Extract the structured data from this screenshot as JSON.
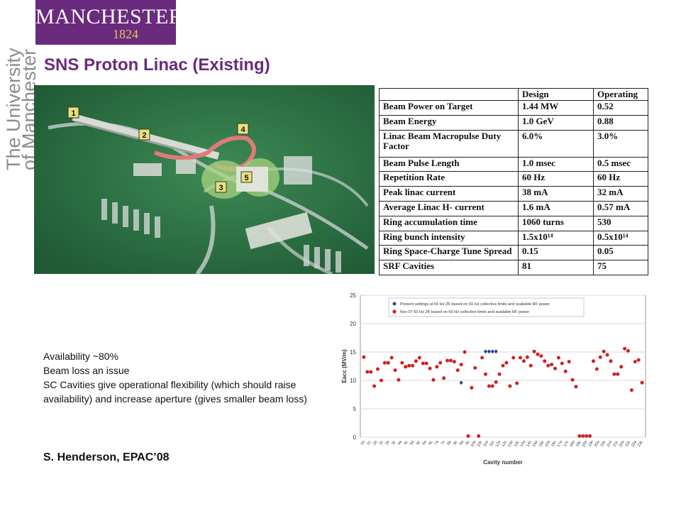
{
  "header": {
    "logo_name": "MANCHESTER",
    "logo_year": "1824",
    "vertical_line1": "The University",
    "vertical_line2": "of Manchester",
    "title": "SNS Proton Linac (Existing)",
    "brand_color": "#6a2a7e"
  },
  "photo": {
    "markers": [
      "1",
      "2",
      "3",
      "4",
      "5"
    ]
  },
  "table": {
    "headers": [
      "",
      "Design",
      "Operating"
    ],
    "rows": [
      [
        "Beam Power on Target",
        "1.44 MW",
        "0.52"
      ],
      [
        "Beam Energy",
        "1.0 GeV",
        "0.88"
      ],
      [
        "Linac Beam Macropulse Duty Factor",
        "6.0%",
        "3.0%"
      ],
      [
        "Beam Pulse Length",
        "1.0 msec",
        "0.5 msec"
      ],
      [
        "Repetition Rate",
        "60 Hz",
        "60 Hz"
      ],
      [
        "Peak linac current",
        "38 mA",
        "32 mA"
      ],
      [
        "Average Linac H- current",
        "1.6 mA",
        "0.57 mA"
      ],
      [
        "Ring accumulation time",
        "1060 turns",
        "530"
      ],
      [
        "Ring bunch intensity",
        "1.5x10¹⁴",
        "0.5x10¹⁴"
      ],
      [
        "Ring Space-Charge Tune Spread",
        "0.15",
        "0.05"
      ],
      [
        "SRF Cavities",
        "81",
        "75"
      ]
    ]
  },
  "notes": {
    "line1": "Availability ~80%",
    "line2": "Beam loss an issue",
    "line3": "SC Cavities give operational flexibility (which should raise availability) and increase aperture (gives smaller beam loss)",
    "citation": "S. Henderson, EPAC’08"
  },
  "chart_data": {
    "type": "scatter",
    "xlabel": "Cavity number",
    "ylabel": "Eacc (MV/m)",
    "ylim": [
      0,
      25
    ],
    "yticks": [
      0,
      5,
      10,
      15,
      20,
      25
    ],
    "xlim": [
      0,
      81
    ],
    "x_ticklabels": [
      "1a",
      "1c",
      "2a",
      "2c",
      "3a",
      "3c",
      "4a",
      "4c",
      "5a",
      "5c",
      "6a",
      "6c",
      "7a",
      "7c",
      "8a",
      "8c",
      "9a",
      "9c",
      "10a",
      "10c",
      "11a",
      "11c",
      "12a",
      "12c",
      "13a",
      "13c",
      "14a",
      "14c",
      "15a",
      "15c",
      "16a",
      "16c",
      "17a",
      "17c",
      "18a",
      "18c",
      "19a",
      "19c",
      "20a",
      "20c",
      "21a",
      "21c",
      "22a",
      "22c",
      "23a",
      "23c"
    ],
    "grid": true,
    "legend_position": "top",
    "series": [
      {
        "name": "Present settings at 60 Hz 2K based on 60 Hz collective limits and available RF power",
        "color": "#1f3f8f",
        "marker": "diamond",
        "x": [
          29,
          36,
          37,
          38,
          39
        ],
        "y": [
          9.6,
          15.1,
          15.1,
          15.1,
          15.1
        ]
      },
      {
        "name": "Nov 07 60 Hz 2K based on 60 Hz collective limits and available RF power",
        "color": "#d02020",
        "marker": "circle",
        "x": [
          1,
          2,
          3,
          4,
          5,
          6,
          7,
          8,
          9,
          10,
          11,
          12,
          13,
          14,
          15,
          16,
          17,
          18,
          19,
          20,
          21,
          22,
          23,
          24,
          25,
          26,
          27,
          28,
          29,
          30,
          31,
          32,
          33,
          34,
          35,
          36,
          37,
          38,
          39,
          40,
          41,
          42,
          43,
          44,
          45,
          46,
          47,
          48,
          49,
          50,
          51,
          52,
          53,
          54,
          55,
          56,
          57,
          58,
          59,
          60,
          61,
          62,
          63,
          64,
          65,
          66,
          67,
          68,
          69,
          70,
          71,
          72,
          73,
          74,
          75,
          76,
          77,
          78,
          79,
          80,
          81
        ],
        "y": [
          14.1,
          11.5,
          11.5,
          9.0,
          12.0,
          10.0,
          13.1,
          13.1,
          14.0,
          11.8,
          10.1,
          13.1,
          12.4,
          12.6,
          12.6,
          13.4,
          14.0,
          13.0,
          13.0,
          12.1,
          10.1,
          12.4,
          13.1,
          10.4,
          13.5,
          13.5,
          13.3,
          11.8,
          12.8,
          15.0,
          0.2,
          8.7,
          12.2,
          0.2,
          14.0,
          11.1,
          9.0,
          9.0,
          9.7,
          11.1,
          12.6,
          13.1,
          9.0,
          14.0,
          9.5,
          14.0,
          13.4,
          14.1,
          12.6,
          15.1,
          14.6,
          14.3,
          13.4,
          12.6,
          12.8,
          12.1,
          14.0,
          13.0,
          11.6,
          13.3,
          10.1,
          8.9,
          0.2,
          0.2,
          0.2,
          0.2,
          13.4,
          12.0,
          14.1,
          15.1,
          14.5,
          13.4,
          11.1,
          11.1,
          12.4,
          15.6,
          15.2,
          8.3,
          13.3,
          13.6,
          9.6
        ]
      }
    ]
  }
}
